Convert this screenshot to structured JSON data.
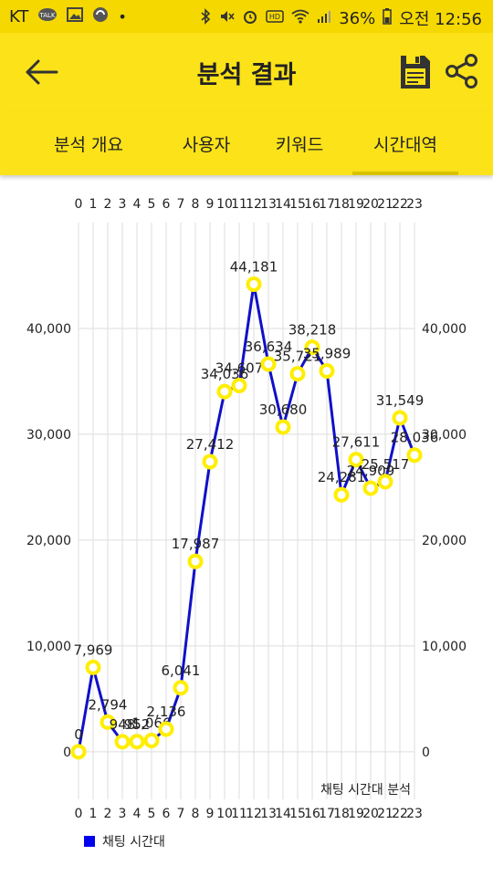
{
  "status_bar": {
    "carrier": "KT",
    "battery": "36%",
    "time": "오전 12:56",
    "icons": [
      "talk-icon",
      "image-icon",
      "sync-icon",
      "dot-icon",
      "bluetooth-icon",
      "mute-icon",
      "alarm-icon",
      "hd-icon",
      "wifi-icon",
      "signal-icon",
      "battery-icon"
    ]
  },
  "appbar": {
    "title": "분석 결과",
    "back_icon": "arrow-left-icon",
    "save_icon": "save-icon",
    "share_icon": "share-icon"
  },
  "tabs": [
    {
      "label": "분석 개요",
      "selected": false
    },
    {
      "label": "사용자",
      "selected": false
    },
    {
      "label": "키워드",
      "selected": false
    },
    {
      "label": "시간대역",
      "selected": true
    }
  ],
  "colors": {
    "accent": "#fbe219",
    "line": "#1010c8",
    "marker": "#ffee00"
  },
  "chart_data": {
    "type": "line",
    "x": [
      0,
      1,
      2,
      3,
      4,
      5,
      6,
      7,
      8,
      9,
      10,
      11,
      12,
      13,
      14,
      15,
      16,
      17,
      18,
      19,
      20,
      21,
      22,
      23
    ],
    "series": [
      {
        "name": "채팅 시간대",
        "values": [
          0,
          7969,
          2794,
          948,
          952,
          1066,
          2136,
          6041,
          17987,
          27412,
          34036,
          34607,
          44181,
          36634,
          30680,
          35721,
          38218,
          35989,
          24281,
          27611,
          24909,
          25517,
          31549,
          28036
        ]
      }
    ],
    "point_labels": [
      "0",
      "7,969",
      "2,794",
      "948",
      "952",
      "1,066",
      "2,136",
      "6,041",
      "17,987",
      "27,412",
      "34,036",
      "34,607",
      "44,181",
      "36,634",
      "30,680",
      "35,721",
      "38,218",
      "35,989",
      "24,281",
      "27,611",
      "24,909",
      "25,517",
      "31,549",
      "28,036"
    ],
    "y_ticks": [
      0,
      10000,
      20000,
      30000,
      40000
    ],
    "y_tick_labels": [
      "0",
      "10,000",
      "20,000",
      "30,000",
      "40,000"
    ],
    "ylim": [
      -4500,
      50000
    ],
    "xlim": [
      0,
      23
    ],
    "chart_title": "채팅 시간대 분석",
    "legend": "채팅 시간대",
    "grid": true
  }
}
